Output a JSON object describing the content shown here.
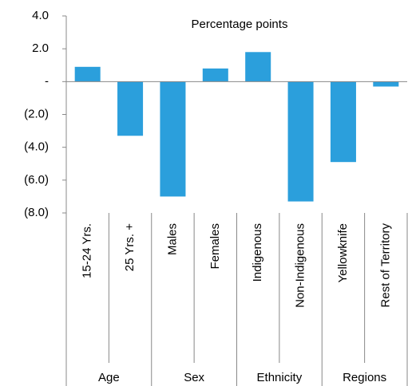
{
  "chart_data": {
    "type": "bar",
    "subtitle": "Percentage points",
    "categories": [
      "15-24 Yrs.",
      "25 Yrs. +",
      "Males",
      "Females",
      "Indigenous",
      "Non-Indigenous",
      "Yellowknife",
      "Rest of Territory"
    ],
    "groups": [
      "Age",
      "Sex",
      "Ethnicity",
      "Regions"
    ],
    "values": [
      0.9,
      -3.3,
      -7.0,
      0.8,
      1.8,
      -7.3,
      -4.9,
      -0.3
    ],
    "color": "#2b9fdc",
    "ylim": [
      -8,
      4
    ],
    "yticks": [
      {
        "value": 4,
        "label": "4.0"
      },
      {
        "value": 2,
        "label": "2.0"
      },
      {
        "value": 0,
        "label": "-"
      },
      {
        "value": -2,
        "label": "(2.0)"
      },
      {
        "value": -4,
        "label": "(4.0)"
      },
      {
        "value": -6,
        "label": "(6.0)"
      },
      {
        "value": -8,
        "label": "(8.0)"
      }
    ],
    "grid": false
  }
}
